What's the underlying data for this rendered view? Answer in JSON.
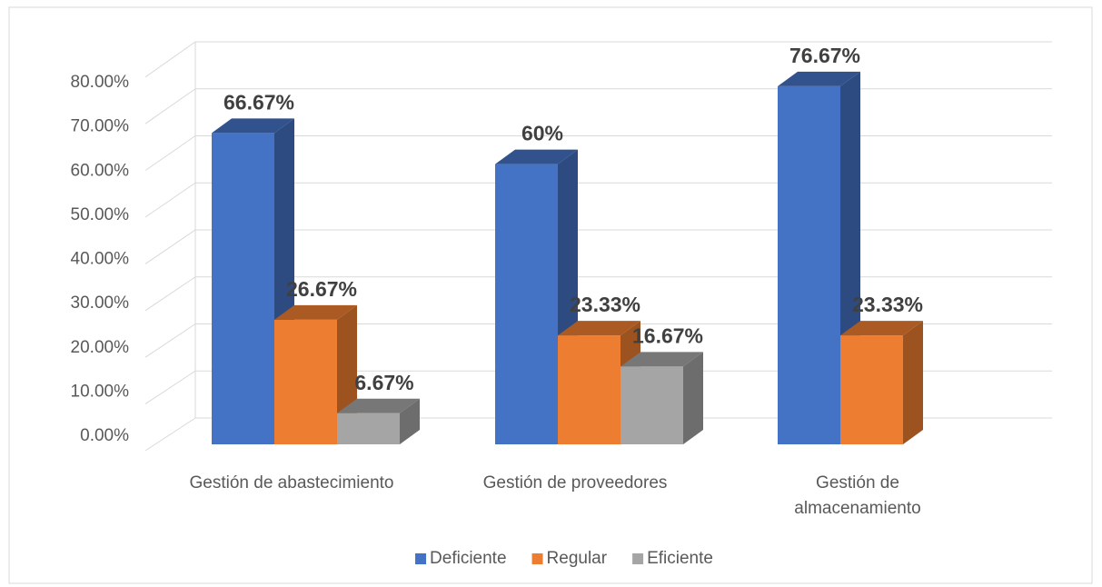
{
  "chart_data": {
    "type": "bar3d",
    "categories": [
      "Gestión de abastecimiento",
      "Gestión de proveedores",
      "Gestión de almacenamiento"
    ],
    "series": [
      {
        "name": "Deficiente",
        "color": "#4472c4",
        "values": [
          66.67,
          60,
          76.67
        ],
        "value_labels": [
          "66.67%",
          "60%",
          "76.67%"
        ]
      },
      {
        "name": "Regular",
        "color": "#ed7d31",
        "values": [
          26.67,
          23.33,
          23.33
        ],
        "value_labels": [
          "26.67%",
          "23.33%",
          "23.33%"
        ]
      },
      {
        "name": "Eficiente",
        "color": "#a5a5a5",
        "values": [
          6.67,
          16.67,
          null
        ],
        "value_labels": [
          "6.67%",
          "16.67%",
          null
        ]
      }
    ],
    "ylim": [
      0,
      80
    ],
    "yticks": [
      {
        "value": 0,
        "label": "0.00%"
      },
      {
        "value": 10,
        "label": "10.00%"
      },
      {
        "value": 20,
        "label": "20.00%"
      },
      {
        "value": 30,
        "label": "30.00%"
      },
      {
        "value": 40,
        "label": "40.00%"
      },
      {
        "value": 50,
        "label": "50.00%"
      },
      {
        "value": 60,
        "label": "60.00%"
      },
      {
        "value": 70,
        "label": "70.00%"
      },
      {
        "value": 80,
        "label": "80.00%"
      }
    ],
    "grid": true,
    "legend": "bottom"
  }
}
